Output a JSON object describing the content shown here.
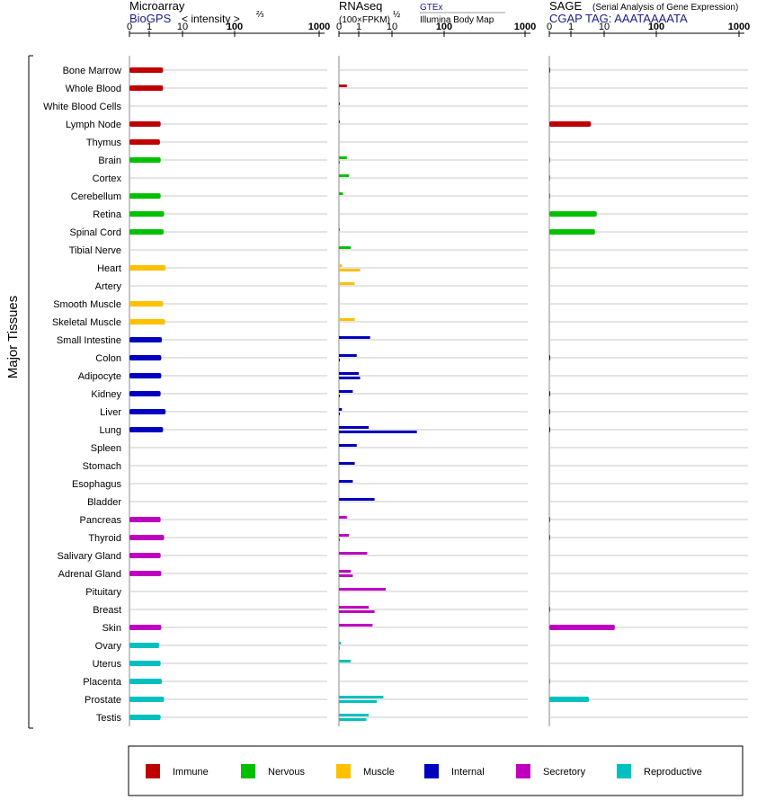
{
  "chart_data": {
    "type": "bar",
    "y_axis_title": "Major Tissues",
    "panels": [
      {
        "key": "microarray",
        "title": "Microarray",
        "subtitle_blue": "BioGPS",
        "unit": "< intensity >",
        "unit_exp": "⅔",
        "ticks": [
          "0",
          "1",
          "10",
          "100",
          "1000"
        ]
      },
      {
        "key": "rnaseq",
        "title": "RNAseq",
        "unit": "(100×FPKM)",
        "unit_exp": "½",
        "source_top": "GTEx",
        "source_bottom": "Illumina Body Map",
        "ticks": [
          "0",
          "1",
          "10",
          "100",
          "1000"
        ]
      },
      {
        "key": "sage",
        "title": "SAGE",
        "title_note": "(Serial Analysis of Gene Expression)",
        "subtitle_blue": "CGAP TAG: AAATAAAATA",
        "ticks": [
          "0",
          "1",
          "10",
          "100",
          "1000"
        ]
      }
    ],
    "groups": [
      {
        "name": "Immune",
        "color": "#c00000"
      },
      {
        "name": "Nervous",
        "color": "#00c000"
      },
      {
        "name": "Muscle",
        "color": "#ffc000"
      },
      {
        "name": "Internal",
        "color": "#0000c0"
      },
      {
        "name": "Secretory",
        "color": "#c000c0"
      },
      {
        "name": "Reproductive",
        "color": "#00c0c0"
      }
    ],
    "tissues": [
      {
        "name": "Bone Marrow",
        "group": 0,
        "microarray": 2.6,
        "rnaseq": [
          null,
          null
        ],
        "sage": 0.02
      },
      {
        "name": "Whole Blood",
        "group": 0,
        "microarray": 2.6,
        "rnaseq": [
          0.4,
          null
        ],
        "sage": null
      },
      {
        "name": "White Blood Cells",
        "group": 0,
        "microarray": null,
        "rnaseq": [
          0.01,
          null
        ],
        "sage": null
      },
      {
        "name": "Lymph Node",
        "group": 0,
        "microarray": 2.2,
        "rnaseq": [
          0.01,
          null
        ],
        "sage": 4.0
      },
      {
        "name": "Thymus",
        "group": 0,
        "microarray": 2.1,
        "rnaseq": [
          null,
          null
        ],
        "sage": null
      },
      {
        "name": "Brain",
        "group": 1,
        "microarray": 2.2,
        "rnaseq": [
          0.4,
          0.01
        ],
        "sage": 0.01
      },
      {
        "name": "Cortex",
        "group": 1,
        "microarray": null,
        "rnaseq": [
          0.5,
          null
        ],
        "sage": 0.01
      },
      {
        "name": "Cerebellum",
        "group": 1,
        "microarray": 2.2,
        "rnaseq": [
          0.2,
          null
        ],
        "sage": 0.01
      },
      {
        "name": "Retina",
        "group": 1,
        "microarray": 2.8,
        "rnaseq": [
          null,
          null
        ],
        "sage": 6.0
      },
      {
        "name": "Spinal Cord",
        "group": 1,
        "microarray": 2.7,
        "rnaseq": [
          0.05,
          null
        ],
        "sage": 5.3
      },
      {
        "name": "Tibial Nerve",
        "group": 1,
        "microarray": null,
        "rnaseq": [
          0.6,
          null
        ],
        "sage": null
      },
      {
        "name": "Heart",
        "group": 2,
        "microarray": 3.1,
        "rnaseq": [
          0.15,
          1.1
        ],
        "sage": 0.01
      },
      {
        "name": "Artery",
        "group": 2,
        "microarray": null,
        "rnaseq": [
          0.8,
          null
        ],
        "sage": null
      },
      {
        "name": "Smooth Muscle",
        "group": 2,
        "microarray": 2.6,
        "rnaseq": [
          null,
          null
        ],
        "sage": null
      },
      {
        "name": "Skeletal Muscle",
        "group": 2,
        "microarray": 3.0,
        "rnaseq": [
          0.8,
          null
        ],
        "sage": 0.01
      },
      {
        "name": "Small Intestine",
        "group": 3,
        "microarray": 2.4,
        "rnaseq": [
          2.2,
          null
        ],
        "sage": null
      },
      {
        "name": "Colon",
        "group": 3,
        "microarray": 2.3,
        "rnaseq": [
          0.9,
          0.01
        ],
        "sage": 0.01
      },
      {
        "name": "Adipocyte",
        "group": 3,
        "microarray": 2.3,
        "rnaseq": [
          1.0,
          1.1
        ],
        "sage": null
      },
      {
        "name": "Kidney",
        "group": 3,
        "microarray": 2.2,
        "rnaseq": [
          0.7,
          0.01
        ],
        "sage": 0.01
      },
      {
        "name": "Liver",
        "group": 3,
        "microarray": 3.1,
        "rnaseq": [
          0.15,
          0.01
        ],
        "sage": 0.01
      },
      {
        "name": "Lung",
        "group": 3,
        "microarray": 2.6,
        "rnaseq": [
          2.0,
          30
        ],
        "sage": 0.01
      },
      {
        "name": "Spleen",
        "group": 3,
        "microarray": null,
        "rnaseq": [
          0.9,
          null
        ],
        "sage": null
      },
      {
        "name": "Stomach",
        "group": 3,
        "microarray": null,
        "rnaseq": [
          0.8,
          null
        ],
        "sage": null
      },
      {
        "name": "Esophagus",
        "group": 3,
        "microarray": null,
        "rnaseq": [
          0.7,
          null
        ],
        "sage": null
      },
      {
        "name": "Bladder",
        "group": 3,
        "microarray": null,
        "rnaseq": [
          3.0,
          null
        ],
        "sage": null
      },
      {
        "name": "Pancreas",
        "group": 4,
        "microarray": 2.2,
        "rnaseq": [
          0.4,
          null
        ],
        "sage": 0.01
      },
      {
        "name": "Thyroid",
        "group": 4,
        "microarray": 2.8,
        "rnaseq": [
          0.5,
          0.01
        ],
        "sage": 0.01
      },
      {
        "name": "Salivary Gland",
        "group": 4,
        "microarray": 2.2,
        "rnaseq": [
          1.8,
          null
        ],
        "sage": null
      },
      {
        "name": "Adrenal Gland",
        "group": 4,
        "microarray": 2.3,
        "rnaseq": [
          0.6,
          0.7
        ],
        "sage": null
      },
      {
        "name": "Pituitary",
        "group": 4,
        "microarray": null,
        "rnaseq": [
          6.5,
          null
        ],
        "sage": null
      },
      {
        "name": "Breast",
        "group": 4,
        "microarray": null,
        "rnaseq": [
          2.0,
          3.0
        ],
        "sage": 0.01
      },
      {
        "name": "Skin",
        "group": 4,
        "microarray": 2.3,
        "rnaseq": [
          2.6,
          null
        ],
        "sage": 16.0
      },
      {
        "name": "Ovary",
        "group": 5,
        "microarray": 2.0,
        "rnaseq": [
          0.1,
          0.01
        ],
        "sage": null
      },
      {
        "name": "Uterus",
        "group": 5,
        "microarray": 2.2,
        "rnaseq": [
          0.6,
          null
        ],
        "sage": null
      },
      {
        "name": "Placenta",
        "group": 5,
        "microarray": 2.4,
        "rnaseq": [
          null,
          null
        ],
        "sage": 0.01
      },
      {
        "name": "Prostate",
        "group": 5,
        "microarray": 2.8,
        "rnaseq": [
          5.5,
          3.5
        ],
        "sage": 3.5
      },
      {
        "name": "Testis",
        "group": 5,
        "microarray": 2.2,
        "rnaseq": [
          2.0,
          1.7
        ],
        "sage": null
      }
    ]
  }
}
